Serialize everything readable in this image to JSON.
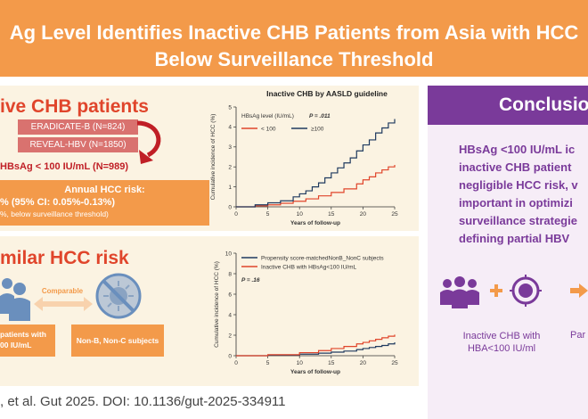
{
  "title": {
    "line1": "Ag Level Identifies Inactive CHB Patients from Asia with HCC",
    "line2": "Below Surveillance Threshold"
  },
  "top_section": {
    "heading": "ive CHB patients",
    "cohort1": "ERADICATE-B  (N=824)",
    "cohort2": "REVEAL-HBV  (N=1850)",
    "criterion": "HBsAg < 100 IU/mL (N=989)",
    "risk_label": "Annual HCC risk:",
    "risk_value": "% (95% CI: 0.05%-0.13%)",
    "risk_note": "%, below surveillance threshold)"
  },
  "bottom_section": {
    "heading": "milar HCC risk",
    "comparable_label": "Comparable",
    "left_box": "patients with\n00 IU/mL",
    "right_box": "Non-B, Non-C subjects"
  },
  "conclusion": {
    "heading": "Conclusio",
    "lines": [
      "HBsAg <100 IU/mL ic",
      "inactive CHB patient",
      "negligible HCC risk, v",
      "important in optimizi",
      "surveillance strategie",
      "defining partial HBV"
    ],
    "icon_label_line1": "Inactive CHB with",
    "icon_label_line2": "HBA<100 IU/ml",
    "icon_label_right": "Par"
  },
  "citation": ", et al. Gut 2025. DOI: 10.1136/gut-2025-334911",
  "colors": {
    "title_bg": "#f39a4a",
    "accent_red": "#e0452b",
    "purple": "#7a3a9a",
    "panel_bg": "#fbf3e2"
  },
  "chart_data": [
    {
      "type": "line",
      "title": "Inactive CHB by AASLD guideline",
      "legend_title": "HBsAg level (IU/mL)",
      "p_value": "P = .011",
      "xlabel": "Years of follow-up",
      "ylabel": "Cumulative incidence of HCC (%)",
      "xlim": [
        0,
        25
      ],
      "ylim": [
        0,
        5
      ],
      "xticks": [
        "0",
        "5",
        "10",
        "15",
        "20",
        "25"
      ],
      "yticks": [
        "0",
        "1",
        "2",
        "3",
        "4",
        "5"
      ],
      "series": [
        {
          "name": "< 100",
          "color": "#e0452b",
          "x": [
            0,
            3,
            5,
            7,
            9,
            11,
            13,
            15,
            17,
            19,
            20,
            21,
            22,
            23,
            24,
            25
          ],
          "y": [
            0,
            0.05,
            0.1,
            0.18,
            0.28,
            0.4,
            0.55,
            0.72,
            0.9,
            1.15,
            1.35,
            1.5,
            1.7,
            1.85,
            2.0,
            2.1
          ]
        },
        {
          "name": "≥100",
          "color": "#1f3a5f",
          "x": [
            0,
            3,
            5,
            7,
            9,
            10,
            11,
            12,
            13,
            14,
            15,
            16,
            17,
            18,
            19,
            20,
            21,
            22,
            23,
            24,
            25
          ],
          "y": [
            0,
            0.1,
            0.2,
            0.3,
            0.5,
            0.65,
            0.8,
            1.0,
            1.2,
            1.45,
            1.7,
            1.95,
            2.2,
            2.45,
            2.8,
            3.1,
            3.35,
            3.7,
            3.95,
            4.2,
            4.4
          ]
        }
      ]
    },
    {
      "type": "line",
      "p_value": "P = .16",
      "xlabel": "Years of follow-up",
      "ylabel": "Cumulative incidence of HCC (%)",
      "xlim": [
        0,
        25
      ],
      "ylim": [
        0,
        10
      ],
      "xticks": [
        "0",
        "5",
        "10",
        "15",
        "20",
        "25"
      ],
      "yticks": [
        "0",
        "2",
        "4",
        "6",
        "8",
        "10"
      ],
      "series": [
        {
          "name": "Propensity score-matchedNonB_NonC subjects",
          "color": "#1f3a5f",
          "x": [
            0,
            5,
            10,
            13,
            15,
            17,
            19,
            20,
            21,
            22,
            23,
            24,
            25
          ],
          "y": [
            0,
            0.05,
            0.15,
            0.25,
            0.35,
            0.45,
            0.6,
            0.7,
            0.8,
            0.9,
            1.0,
            1.15,
            1.3
          ]
        },
        {
          "name": "Inactive CHB with HBsAg<100 IU/mL",
          "color": "#e0452b",
          "x": [
            0,
            5,
            10,
            13,
            15,
            17,
            19,
            20,
            21,
            22,
            23,
            24,
            25
          ],
          "y": [
            0,
            0.1,
            0.3,
            0.5,
            0.7,
            0.9,
            1.15,
            1.3,
            1.45,
            1.6,
            1.75,
            1.9,
            2.05
          ]
        }
      ]
    }
  ]
}
